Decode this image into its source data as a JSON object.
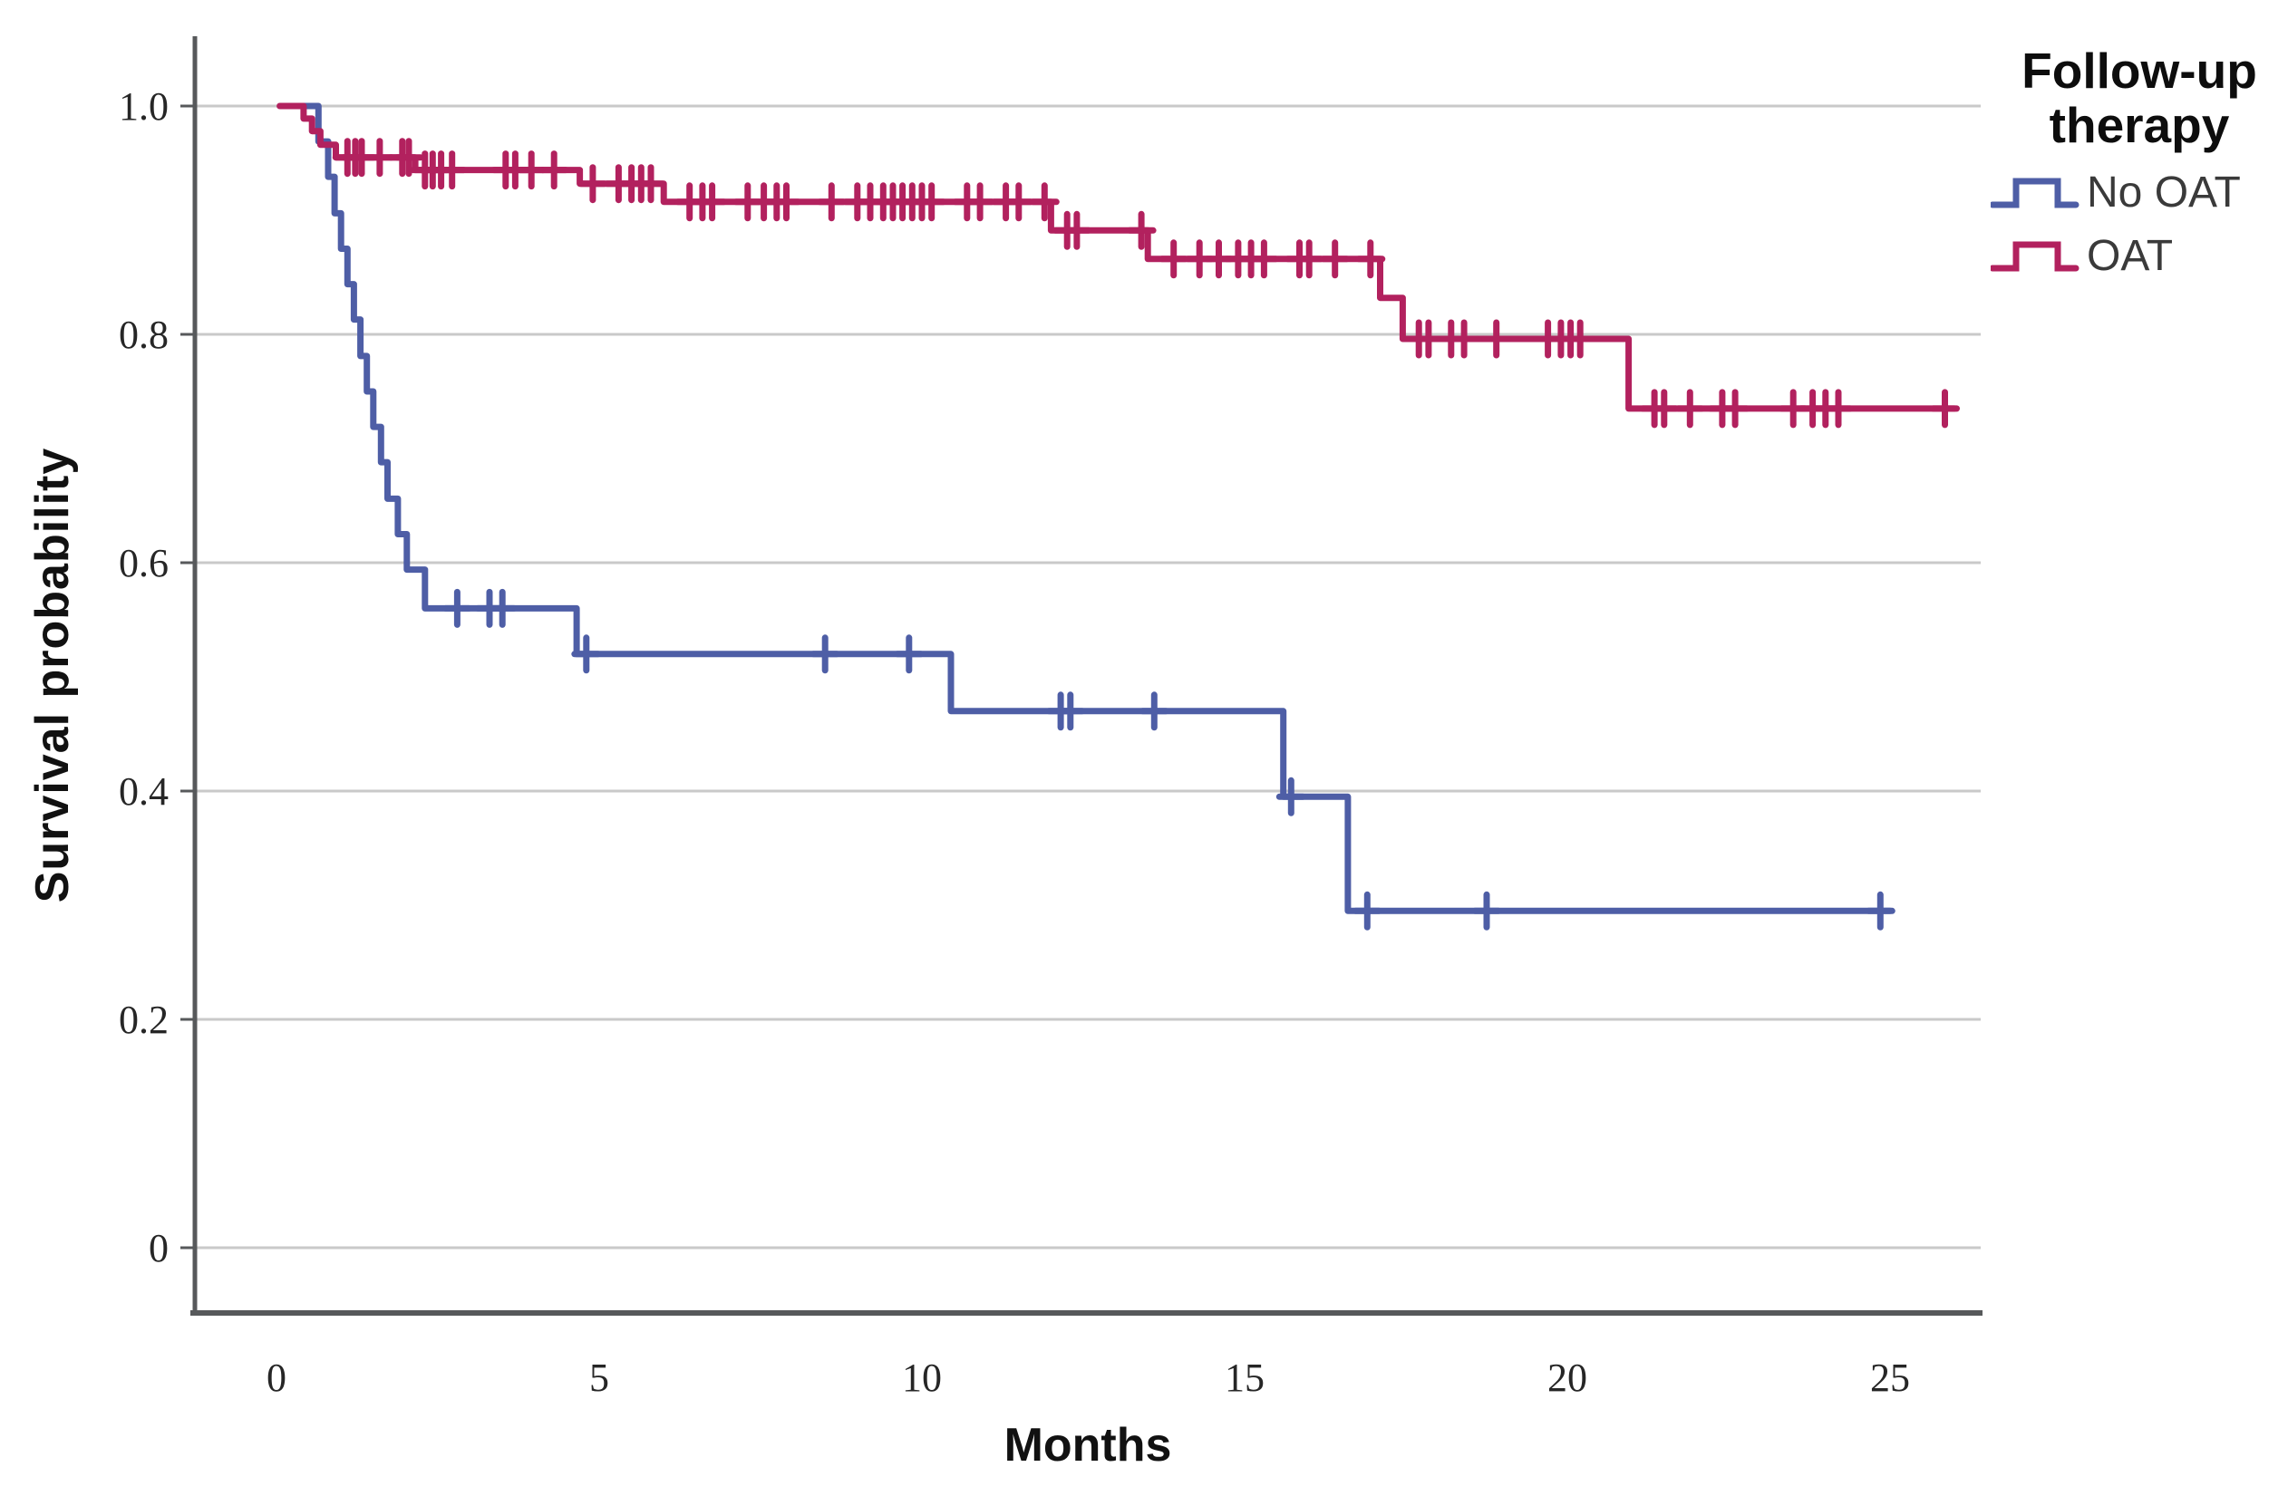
{
  "figure": {
    "background": "#ffffff",
    "axis_color": "#57595b",
    "grid_color": "#c9c9c9",
    "tick_text_color": "#262626"
  },
  "y_axis": {
    "title": "Survival probability",
    "ticks": [
      "1.0",
      "0.8",
      "0.6",
      "0.4",
      "0.2",
      "0"
    ]
  },
  "x_axis": {
    "title": "Months",
    "ticks": [
      "0",
      "5",
      "10",
      "15",
      "20",
      "25"
    ]
  },
  "legend": {
    "title_line1": "Follow-up",
    "title_line2": "therapy",
    "items": [
      {
        "label": "No OAT",
        "color": "#4e5ea6"
      },
      {
        "label": "OAT",
        "color": "#b2215e"
      }
    ]
  },
  "chart_data": {
    "type": "line",
    "subtype": "kaplan-meier-step",
    "title": "",
    "xlabel": "Months",
    "ylabel": "Survival probability",
    "xlim": [
      -1.3,
      26.5
    ],
    "ylim": [
      -0.055,
      1.06
    ],
    "x_ticks": [
      0,
      5,
      10,
      15,
      20,
      25
    ],
    "y_ticks": [
      1.0,
      0.8,
      0.6,
      0.4,
      0.2,
      0
    ],
    "grid": "horizontal",
    "legend_position": "top-right",
    "legend_title": "Follow-up therapy",
    "series": [
      {
        "name": "No OAT",
        "color": "#4e5ea6",
        "points": [
          [
            0.08,
            1.0
          ],
          [
            0.65,
            0.969
          ],
          [
            0.8,
            0.938
          ],
          [
            0.9,
            0.906
          ],
          [
            1.0,
            0.875
          ],
          [
            1.1,
            0.844
          ],
          [
            1.2,
            0.813
          ],
          [
            1.3,
            0.781
          ],
          [
            1.4,
            0.75
          ],
          [
            1.5,
            0.719
          ],
          [
            1.62,
            0.688
          ],
          [
            1.72,
            0.656
          ],
          [
            1.88,
            0.625
          ],
          [
            2.02,
            0.594
          ],
          [
            2.3,
            0.56
          ],
          [
            4.65,
            0.52
          ],
          [
            10.45,
            0.47
          ],
          [
            15.6,
            0.395
          ],
          [
            16.6,
            0.295
          ]
        ],
        "end": 25.0,
        "censors": [
          [
            2.8,
            0.56
          ],
          [
            3.3,
            0.56
          ],
          [
            3.5,
            0.56
          ],
          [
            4.8,
            0.52
          ],
          [
            8.5,
            0.52
          ],
          [
            9.8,
            0.52
          ],
          [
            12.15,
            0.47
          ],
          [
            12.3,
            0.47
          ],
          [
            13.6,
            0.47
          ],
          [
            15.72,
            0.395
          ],
          [
            16.9,
            0.295
          ],
          [
            18.75,
            0.295
          ],
          [
            24.85,
            0.295
          ]
        ]
      },
      {
        "name": "OAT",
        "color": "#b2215e",
        "points": [
          [
            0.05,
            1.0
          ],
          [
            0.42,
            0.989
          ],
          [
            0.55,
            0.978
          ],
          [
            0.68,
            0.966
          ],
          [
            0.92,
            0.955
          ],
          [
            2.15,
            0.944
          ],
          [
            4.7,
            0.932
          ],
          [
            6.0,
            0.916
          ],
          [
            12.0,
            0.891
          ],
          [
            13.5,
            0.866
          ],
          [
            17.1,
            0.832
          ],
          [
            17.45,
            0.796
          ],
          [
            20.95,
            0.735
          ]
        ],
        "end": 26.0,
        "censors": [
          [
            1.1,
            0.955
          ],
          [
            1.22,
            0.955
          ],
          [
            1.32,
            0.955
          ],
          [
            1.6,
            0.955
          ],
          [
            1.95,
            0.955
          ],
          [
            2.05,
            0.955
          ],
          [
            2.3,
            0.944
          ],
          [
            2.42,
            0.944
          ],
          [
            2.55,
            0.944
          ],
          [
            2.72,
            0.944
          ],
          [
            3.55,
            0.944
          ],
          [
            3.7,
            0.944
          ],
          [
            3.95,
            0.944
          ],
          [
            4.3,
            0.944
          ],
          [
            4.9,
            0.932
          ],
          [
            5.3,
            0.932
          ],
          [
            5.5,
            0.932
          ],
          [
            5.65,
            0.932
          ],
          [
            5.8,
            0.932
          ],
          [
            6.4,
            0.916
          ],
          [
            6.6,
            0.916
          ],
          [
            6.75,
            0.916
          ],
          [
            7.3,
            0.916
          ],
          [
            7.55,
            0.916
          ],
          [
            7.75,
            0.916
          ],
          [
            7.9,
            0.916
          ],
          [
            8.6,
            0.916
          ],
          [
            9.0,
            0.916
          ],
          [
            9.2,
            0.916
          ],
          [
            9.4,
            0.916
          ],
          [
            9.55,
            0.916
          ],
          [
            9.7,
            0.916
          ],
          [
            9.85,
            0.916
          ],
          [
            10.0,
            0.916
          ],
          [
            10.15,
            0.916
          ],
          [
            10.7,
            0.916
          ],
          [
            10.9,
            0.916
          ],
          [
            11.3,
            0.916
          ],
          [
            11.5,
            0.916
          ],
          [
            11.9,
            0.916
          ],
          [
            12.25,
            0.891
          ],
          [
            12.4,
            0.891
          ],
          [
            13.4,
            0.891
          ],
          [
            13.9,
            0.866
          ],
          [
            14.3,
            0.866
          ],
          [
            14.6,
            0.866
          ],
          [
            14.9,
            0.866
          ],
          [
            15.1,
            0.866
          ],
          [
            15.3,
            0.866
          ],
          [
            15.85,
            0.866
          ],
          [
            16.0,
            0.866
          ],
          [
            16.4,
            0.866
          ],
          [
            16.95,
            0.866
          ],
          [
            17.7,
            0.796
          ],
          [
            17.85,
            0.796
          ],
          [
            18.2,
            0.796
          ],
          [
            18.4,
            0.796
          ],
          [
            18.9,
            0.796
          ],
          [
            19.7,
            0.796
          ],
          [
            19.9,
            0.796
          ],
          [
            20.05,
            0.796
          ],
          [
            20.2,
            0.796
          ],
          [
            21.35,
            0.735
          ],
          [
            21.5,
            0.735
          ],
          [
            21.9,
            0.735
          ],
          [
            22.4,
            0.735
          ],
          [
            22.6,
            0.735
          ],
          [
            23.5,
            0.735
          ],
          [
            23.8,
            0.735
          ],
          [
            24.0,
            0.735
          ],
          [
            24.2,
            0.735
          ],
          [
            25.85,
            0.735
          ]
        ]
      }
    ]
  }
}
